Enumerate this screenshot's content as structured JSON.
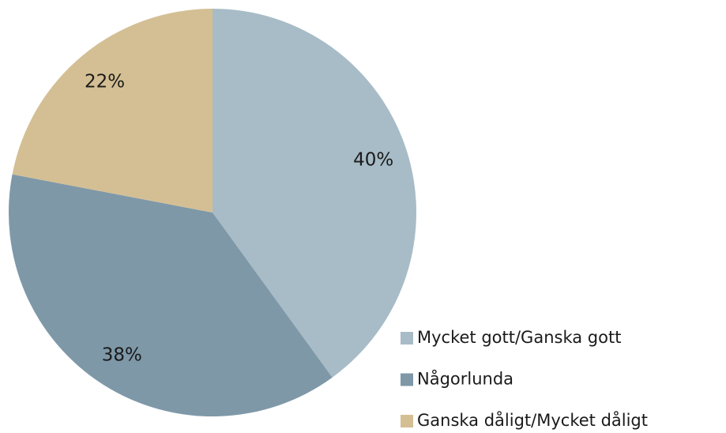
{
  "chart_data": {
    "type": "pie",
    "categories": [
      "Mycket gott/Ganska gott",
      "Någorlunda",
      "Ganska dåligt/Mycket dåligt"
    ],
    "values": [
      40,
      38,
      22
    ],
    "value_labels": [
      "40%",
      "38%",
      "22%"
    ],
    "colors": [
      "#a7bcc7",
      "#7e98a8",
      "#d4bf94"
    ]
  }
}
